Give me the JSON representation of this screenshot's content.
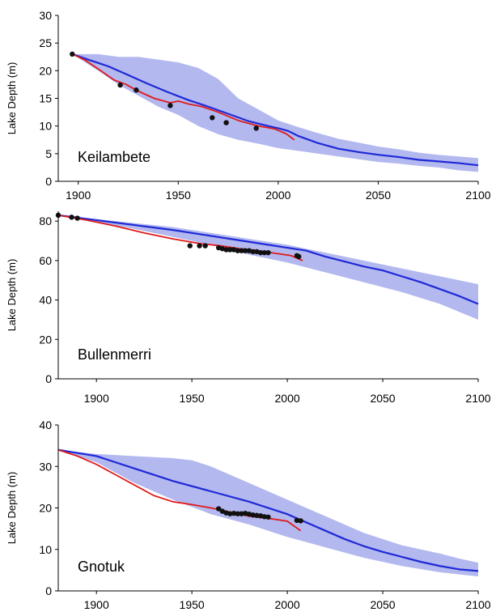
{
  "figure": {
    "colors": {
      "band": "#b3b8ef",
      "model_line": "#1f29d6",
      "observed_line": "#e01a1a",
      "observed_points": "#111111"
    }
  },
  "chart_data": [
    {
      "type": "line",
      "lake_label": "Keilambete",
      "ylabel": "Lake Depth (m)",
      "xlim": [
        1890,
        2100
      ],
      "ylim": [
        0,
        30
      ],
      "x_ticks": [
        "1900",
        "1950",
        "2000",
        "2050",
        "2100"
      ],
      "y_ticks": [
        "0",
        "5",
        "10",
        "15",
        "20",
        "25",
        "30"
      ],
      "series": [
        {
          "kind": "band",
          "upper": [
            [
              1897,
              23
            ],
            [
              1910,
              23
            ],
            [
              1920,
              22.5
            ],
            [
              1930,
              22.5
            ],
            [
              1940,
              22
            ],
            [
              1950,
              21.5
            ],
            [
              1960,
              20.5
            ],
            [
              1970,
              18.5
            ],
            [
              1980,
              15
            ],
            [
              1990,
              13
            ],
            [
              2000,
              11
            ],
            [
              2010,
              9.8
            ],
            [
              2020,
              8.7
            ],
            [
              2030,
              7.7
            ],
            [
              2040,
              7
            ],
            [
              2050,
              6.3
            ],
            [
              2060,
              5.8
            ],
            [
              2070,
              5.2
            ],
            [
              2080,
              4.8
            ],
            [
              2090,
              4.5
            ],
            [
              2100,
              4.2
            ]
          ],
          "lower": [
            [
              2100,
              1.7
            ],
            [
              2090,
              2
            ],
            [
              2080,
              2.5
            ],
            [
              2070,
              2.8
            ],
            [
              2060,
              3.2
            ],
            [
              2050,
              3.5
            ],
            [
              2040,
              4
            ],
            [
              2030,
              4.5
            ],
            [
              2020,
              5
            ],
            [
              2010,
              5.5
            ],
            [
              2000,
              6
            ],
            [
              1990,
              6.8
            ],
            [
              1980,
              7.5
            ],
            [
              1970,
              8.5
            ],
            [
              1960,
              10
            ],
            [
              1950,
              12
            ],
            [
              1940,
              13.5
            ],
            [
              1930,
              15.5
            ],
            [
              1920,
              17.5
            ],
            [
              1910,
              20
            ],
            [
              1897,
              23
            ]
          ]
        },
        {
          "kind": "line",
          "points": [
            [
              1897,
              23
            ],
            [
              1905,
              22
            ],
            [
              1915,
              20.8
            ],
            [
              1925,
              19.2
            ],
            [
              1935,
              17.6
            ],
            [
              1945,
              16.1
            ],
            [
              1955,
              14.7
            ],
            [
              1965,
              13.5
            ],
            [
              1975,
              12.2
            ],
            [
              1985,
              10.9
            ],
            [
              1995,
              10
            ],
            [
              2000,
              9.6
            ],
            [
              2005,
              9.1
            ],
            [
              2010,
              8.2
            ],
            [
              2020,
              6.9
            ],
            [
              2030,
              5.9
            ],
            [
              2040,
              5.3
            ],
            [
              2050,
              4.8
            ],
            [
              2060,
              4.4
            ],
            [
              2070,
              3.9
            ],
            [
              2080,
              3.6
            ],
            [
              2090,
              3.3
            ],
            [
              2100,
              2.9
            ]
          ]
        },
        {
          "kind": "line",
          "points": [
            [
              1897,
              23
            ],
            [
              1903,
              22
            ],
            [
              1910,
              20.3
            ],
            [
              1918,
              18.3
            ],
            [
              1924,
              17.5
            ],
            [
              1930,
              16.3
            ],
            [
              1938,
              15
            ],
            [
              1946,
              14.2
            ],
            [
              1950,
              14.5
            ],
            [
              1955,
              14
            ],
            [
              1962,
              13.5
            ],
            [
              1970,
              12.5
            ],
            [
              1980,
              11
            ],
            [
              1990,
              10
            ],
            [
              1998,
              9.5
            ],
            [
              2004,
              8.6
            ],
            [
              2008,
              7.5
            ]
          ]
        },
        {
          "kind": "scatter",
          "points": [
            [
              1897,
              23
            ],
            [
              1921,
              17.4
            ],
            [
              1929,
              16.5
            ],
            [
              1946,
              13.7
            ],
            [
              1967,
              11.5
            ],
            [
              1974,
              10.6
            ],
            [
              1989,
              9.6
            ]
          ]
        }
      ]
    },
    {
      "type": "line",
      "lake_label": "Bullenmerri",
      "ylabel": "Lake Depth (m)",
      "xlim": [
        1880,
        2100
      ],
      "ylim": [
        0,
        85
      ],
      "x_ticks": [
        "1900",
        "1950",
        "2000",
        "2050",
        "2100"
      ],
      "y_ticks": [
        "0",
        "20",
        "40",
        "60",
        "80"
      ],
      "series": [
        {
          "kind": "band",
          "upper": [
            [
              1880,
              83
            ],
            [
              1900,
              81
            ],
            [
              1920,
              79
            ],
            [
              1940,
              77
            ],
            [
              1960,
              74
            ],
            [
              1980,
              71
            ],
            [
              2000,
              68
            ],
            [
              2020,
              64
            ],
            [
              2040,
              60
            ],
            [
              2060,
              56
            ],
            [
              2080,
              52
            ],
            [
              2100,
              48
            ]
          ],
          "lower": [
            [
              2100,
              30
            ],
            [
              2080,
              38
            ],
            [
              2060,
              44
            ],
            [
              2040,
              49
            ],
            [
              2020,
              54
            ],
            [
              2000,
              59
            ],
            [
              1980,
              63
            ],
            [
              1960,
              68
            ],
            [
              1940,
              72
            ],
            [
              1920,
              76
            ],
            [
              1900,
              79.5
            ],
            [
              1880,
              83
            ]
          ]
        },
        {
          "kind": "line",
          "points": [
            [
              1880,
              83
            ],
            [
              1900,
              80.5
            ],
            [
              1920,
              78
            ],
            [
              1940,
              75.5
            ],
            [
              1960,
              72.5
            ],
            [
              1980,
              69.5
            ],
            [
              2000,
              66.5
            ],
            [
              2010,
              65
            ],
            [
              2020,
              62
            ],
            [
              2030,
              59.5
            ],
            [
              2040,
              57
            ],
            [
              2050,
              55
            ],
            [
              2060,
              52
            ],
            [
              2070,
              49
            ],
            [
              2080,
              45.5
            ],
            [
              2090,
              42
            ],
            [
              2100,
              38
            ]
          ]
        },
        {
          "kind": "line",
          "points": [
            [
              1880,
              83
            ],
            [
              1895,
              80.5
            ],
            [
              1910,
              77.5
            ],
            [
              1925,
              74
            ],
            [
              1940,
              71
            ],
            [
              1955,
              68.5
            ],
            [
              1965,
              67.5
            ],
            [
              1975,
              66
            ],
            [
              1985,
              65
            ],
            [
              1995,
              63.5
            ],
            [
              2002,
              62.5
            ],
            [
              2008,
              60
            ]
          ]
        },
        {
          "kind": "scatter",
          "points": [
            [
              1880,
              83
            ],
            [
              1887,
              82
            ],
            [
              1890,
              81.5
            ],
            [
              1949,
              67.5
            ],
            [
              1954,
              67.5
            ],
            [
              1957,
              67.5
            ],
            [
              1964,
              66.5
            ],
            [
              1966,
              66
            ],
            [
              1968,
              65.5
            ],
            [
              1970,
              65.5
            ],
            [
              1972,
              65.5
            ],
            [
              1974,
              65
            ],
            [
              1976,
              65
            ],
            [
              1978,
              65
            ],
            [
              1980,
              65
            ],
            [
              1982,
              64.5
            ],
            [
              1984,
              64.5
            ],
            [
              1986,
              64
            ],
            [
              1988,
              64
            ],
            [
              1990,
              64
            ],
            [
              2005,
              62.5
            ],
            [
              2006,
              62
            ]
          ]
        }
      ]
    },
    {
      "type": "line",
      "lake_label": "Gnotuk",
      "ylabel": "Lake Depth (m)",
      "xlim": [
        1880,
        2100
      ],
      "ylim": [
        0,
        40
      ],
      "x_ticks": [
        "1900",
        "1950",
        "2000",
        "2050",
        "2100"
      ],
      "y_ticks": [
        "0",
        "10",
        "20",
        "30",
        "40"
      ],
      "series": [
        {
          "kind": "band",
          "upper": [
            [
              1880,
              34
            ],
            [
              1900,
              33
            ],
            [
              1920,
              32.5
            ],
            [
              1940,
              32
            ],
            [
              1950,
              31.5
            ],
            [
              1960,
              30
            ],
            [
              1970,
              28
            ],
            [
              1980,
              26
            ],
            [
              1990,
              24
            ],
            [
              2000,
              22
            ],
            [
              2010,
              20
            ],
            [
              2020,
              18
            ],
            [
              2030,
              16
            ],
            [
              2040,
              14
            ],
            [
              2050,
              12.5
            ],
            [
              2060,
              11
            ],
            [
              2070,
              10
            ],
            [
              2080,
              9
            ],
            [
              2090,
              7.8
            ],
            [
              2100,
              6.8
            ]
          ],
          "lower": [
            [
              2100,
              3.5
            ],
            [
              2080,
              4.5
            ],
            [
              2060,
              6
            ],
            [
              2040,
              8
            ],
            [
              2020,
              10.5
            ],
            [
              2000,
              13
            ],
            [
              1980,
              16
            ],
            [
              1960,
              18.5
            ],
            [
              1940,
              22
            ],
            [
              1920,
              26
            ],
            [
              1900,
              31
            ],
            [
              1880,
              34
            ]
          ]
        },
        {
          "kind": "line",
          "points": [
            [
              1880,
              34
            ],
            [
              1900,
              32.5
            ],
            [
              1920,
              29.5
            ],
            [
              1940,
              26.5
            ],
            [
              1960,
              24
            ],
            [
              1980,
              21.5
            ],
            [
              2000,
              18.5
            ],
            [
              2010,
              16.5
            ],
            [
              2020,
              14.5
            ],
            [
              2030,
              12.5
            ],
            [
              2040,
              10.8
            ],
            [
              2050,
              9.4
            ],
            [
              2060,
              8.2
            ],
            [
              2070,
              7
            ],
            [
              2080,
              6
            ],
            [
              2090,
              5.2
            ],
            [
              2100,
              4.8
            ]
          ]
        },
        {
          "kind": "line",
          "points": [
            [
              1880,
              34
            ],
            [
              1890,
              32.5
            ],
            [
              1900,
              30.5
            ],
            [
              1910,
              28
            ],
            [
              1920,
              25.5
            ],
            [
              1930,
              23
            ],
            [
              1940,
              21.5
            ],
            [
              1950,
              20.8
            ],
            [
              1960,
              20
            ],
            [
              1970,
              19
            ],
            [
              1980,
              18
            ],
            [
              1990,
              17.5
            ],
            [
              2000,
              16.8
            ],
            [
              2007,
              14.5
            ]
          ]
        },
        {
          "kind": "scatter",
          "points": [
            [
              1964,
              19.8
            ],
            [
              1966,
              19.2
            ],
            [
              1968,
              18.8
            ],
            [
              1970,
              18.6
            ],
            [
              1972,
              18.7
            ],
            [
              1974,
              18.6
            ],
            [
              1976,
              18.6
            ],
            [
              1978,
              18.7
            ],
            [
              1980,
              18.5
            ],
            [
              1982,
              18.3
            ],
            [
              1984,
              18.2
            ],
            [
              1986,
              18.1
            ],
            [
              1988,
              17.9
            ],
            [
              1990,
              17.8
            ],
            [
              2005,
              17
            ],
            [
              2007,
              16.9
            ]
          ]
        }
      ]
    }
  ]
}
